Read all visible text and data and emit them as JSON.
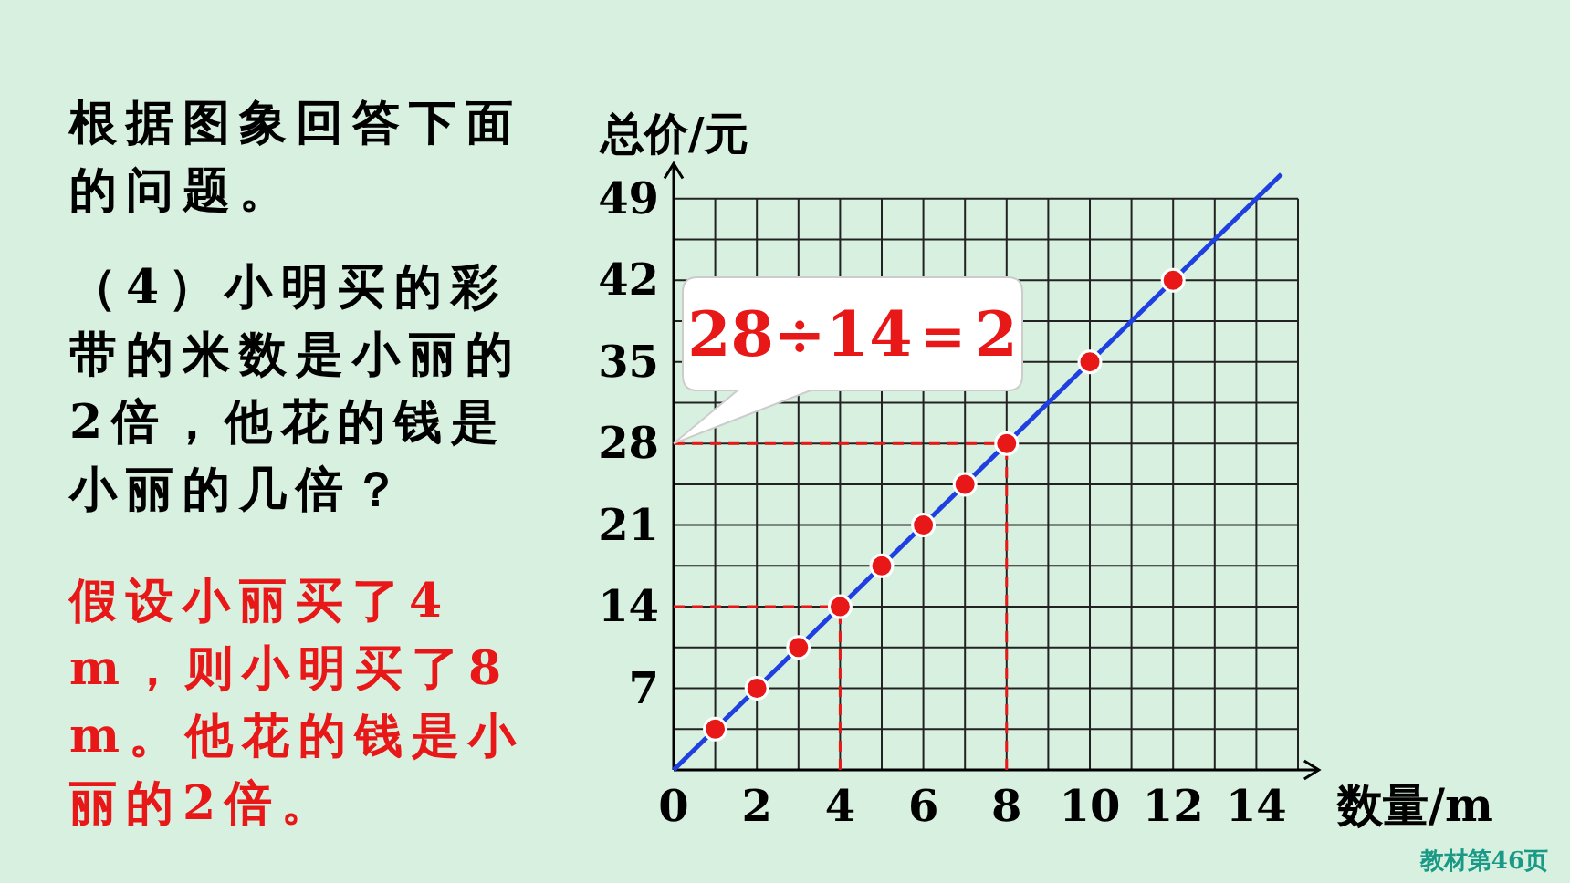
{
  "chart_data": {
    "type": "line",
    "xlabel": "数量/m",
    "ylabel": "总价/元",
    "xlim": [
      0,
      15.5
    ],
    "ylim": [
      0,
      52
    ],
    "xticks": [
      0,
      2,
      4,
      6,
      8,
      10,
      12,
      14
    ],
    "yticks": [
      7,
      14,
      21,
      28,
      35,
      42,
      49
    ],
    "grid": true,
    "series": [
      {
        "color": "#1f3fe0",
        "marker": "none",
        "x": [
          0,
          14.6
        ],
        "values": [
          0,
          51.1
        ]
      },
      {
        "type": "scatter",
        "color": "#e81818",
        "marker": "circle",
        "x": [
          1,
          2,
          3,
          4,
          5,
          6,
          7,
          8,
          10,
          12
        ],
        "values": [
          3.5,
          7,
          10.5,
          14,
          17.5,
          21,
          24.5,
          28,
          35,
          42
        ]
      }
    ],
    "ref_lines": [
      {
        "axis": "y",
        "value": 14,
        "color": "#e81818",
        "line_style": "dashed"
      },
      {
        "axis": "y",
        "value": 28,
        "color": "#e81818",
        "line_style": "dashed"
      },
      {
        "axis": "x",
        "value": 4,
        "color": "#e81818",
        "line_style": "dashed"
      },
      {
        "axis": "x",
        "value": 8,
        "color": "#e81818",
        "line_style": "dashed"
      }
    ],
    "annotations": [
      "根据图象回答下面的问题。",
      "（4）小明买的彩带的米数是小丽的2倍，他花的钱是小丽的几倍？",
      "假设小丽买了4 m，则小明买了8 m。他花的钱是小丽的2倍。",
      {
        "text": "28÷14＝2",
        "x": 0,
        "y": 28
      },
      "教材第46页"
    ]
  }
}
